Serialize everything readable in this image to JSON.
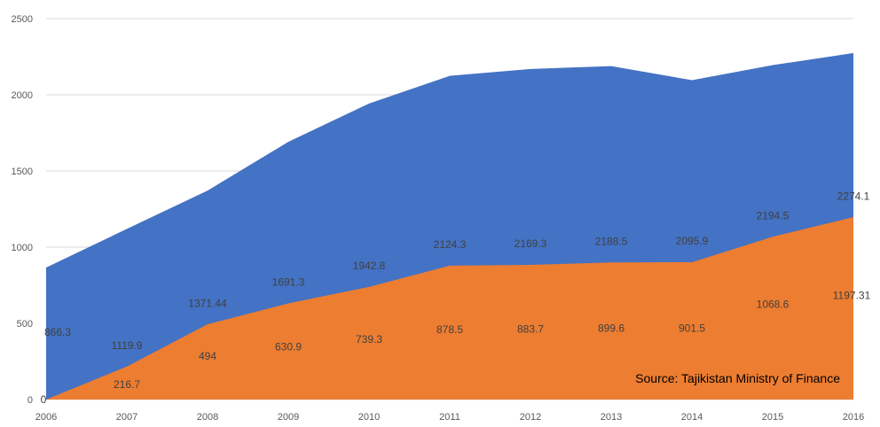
{
  "chart_data": {
    "type": "area",
    "stacked": false,
    "x": [
      "2006",
      "2007",
      "2008",
      "2009",
      "2010",
      "2011",
      "2012",
      "2013",
      "2014",
      "2015",
      "2016"
    ],
    "series": [
      {
        "color": "#4472C4",
        "values": [
          866.3,
          1119.9,
          1371.44,
          1691.3,
          1942.8,
          2124.3,
          2169.3,
          2188.5,
          2095.9,
          2194.5,
          2274.1
        ],
        "labels": [
          "866.3",
          "1119.9",
          "1371.44",
          "1691.3",
          "1942.8",
          "2124.3",
          "2169.3",
          "2188.5",
          "2095.9",
          "2194.5",
          "2274.1"
        ]
      },
      {
        "color": "#ED7D31",
        "values": [
          0,
          216.7,
          494,
          630.9,
          739.3,
          878.5,
          883.7,
          899.6,
          901.5,
          1068.6,
          1197.31
        ],
        "labels": [
          "0",
          "216.7",
          "494",
          "630.9",
          "739.3",
          "878.5",
          "883.7",
          "899.6",
          "901.5",
          "1068.6",
          "1197.31"
        ]
      }
    ],
    "ylim": [
      0,
      2500
    ],
    "yticks": [
      "0",
      "500",
      "1000",
      "1500",
      "2000",
      "2500"
    ],
    "grid": true,
    "gridline_color": "#D9D9D9",
    "annotation": "Source: Tajikistan Ministry of Finance"
  }
}
